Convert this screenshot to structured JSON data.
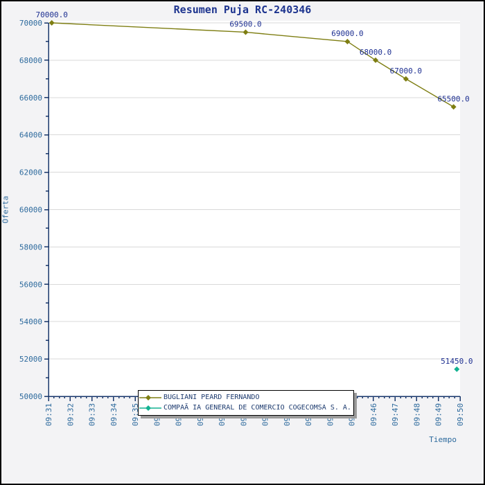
{
  "title": "Resumen Puja RC-240346",
  "x_axis_title": "Tiempo",
  "y_axis_title": "Oferta",
  "legend": {
    "position": "bottom-inside",
    "items": [
      {
        "label": "BUGLIANI PEARD FERNANDO",
        "color": "#7e7e12",
        "marker": "diamond-line"
      },
      {
        "label": "COMPAÃ IA GENERAL DE COMERCIO COGECOMSA S. A.",
        "color": "#12b291",
        "marker": "diamond-line"
      }
    ]
  },
  "chart_data": {
    "type": "line",
    "title": "Resumen Puja RC-240346",
    "xlabel": "Tiempo",
    "ylabel": "Oferta",
    "x_tick_labels": [
      "09:31",
      "09:32",
      "09:33",
      "09:34",
      "09:35",
      "09:36",
      "09:37",
      "09:38",
      "09:39",
      "09:40",
      "09:41",
      "09:42",
      "09:43",
      "09:44",
      "09:45",
      "09:46",
      "09:47",
      "09:48",
      "09:49",
      "09:50"
    ],
    "x_minor_ticks_per_interval": 4,
    "ylim": [
      50000,
      70000
    ],
    "y_tick_step": 2000,
    "y_minor_step": 1000,
    "y_tick_labels": [
      "50000",
      "52000",
      "54000",
      "56000",
      "58000",
      "60000",
      "62000",
      "64000",
      "66000",
      "68000",
      "70000"
    ],
    "grid": "horizontal",
    "series": [
      {
        "name": "BUGLIANI PEARD FERNANDO",
        "color": "#7e7e12",
        "marker": "diamond",
        "points": [
          {
            "t_min": 0.15,
            "value": 70000.0,
            "label": "70000.0"
          },
          {
            "t_min": 9.1,
            "value": 69500.0,
            "label": "69500.0"
          },
          {
            "t_min": 13.8,
            "value": 69000.0,
            "label": "69000.0"
          },
          {
            "t_min": 15.1,
            "value": 68000.0,
            "label": "68000.0"
          },
          {
            "t_min": 16.5,
            "value": 67000.0,
            "label": "67000.0"
          },
          {
            "t_min": 18.7,
            "value": 65500.0,
            "label": "65500.0"
          }
        ]
      },
      {
        "name": "COMPAÃ IA GENERAL DE COMERCIO COGECOMSA S. A.",
        "color": "#12b291",
        "marker": "diamond",
        "points": [
          {
            "t_min": 18.85,
            "value": 51450.0,
            "label": "51450.0"
          }
        ]
      }
    ]
  },
  "colors": {
    "background": "#f3f3f5",
    "plot_background": "#ffffff",
    "gridline": "#d8d8d8",
    "axis": "#19376b",
    "tick_label": "#2d6a9d",
    "data_label": "#1d2f91",
    "title": "#1d348f",
    "series_1": "#7e7e12",
    "series_2": "#12b291"
  }
}
